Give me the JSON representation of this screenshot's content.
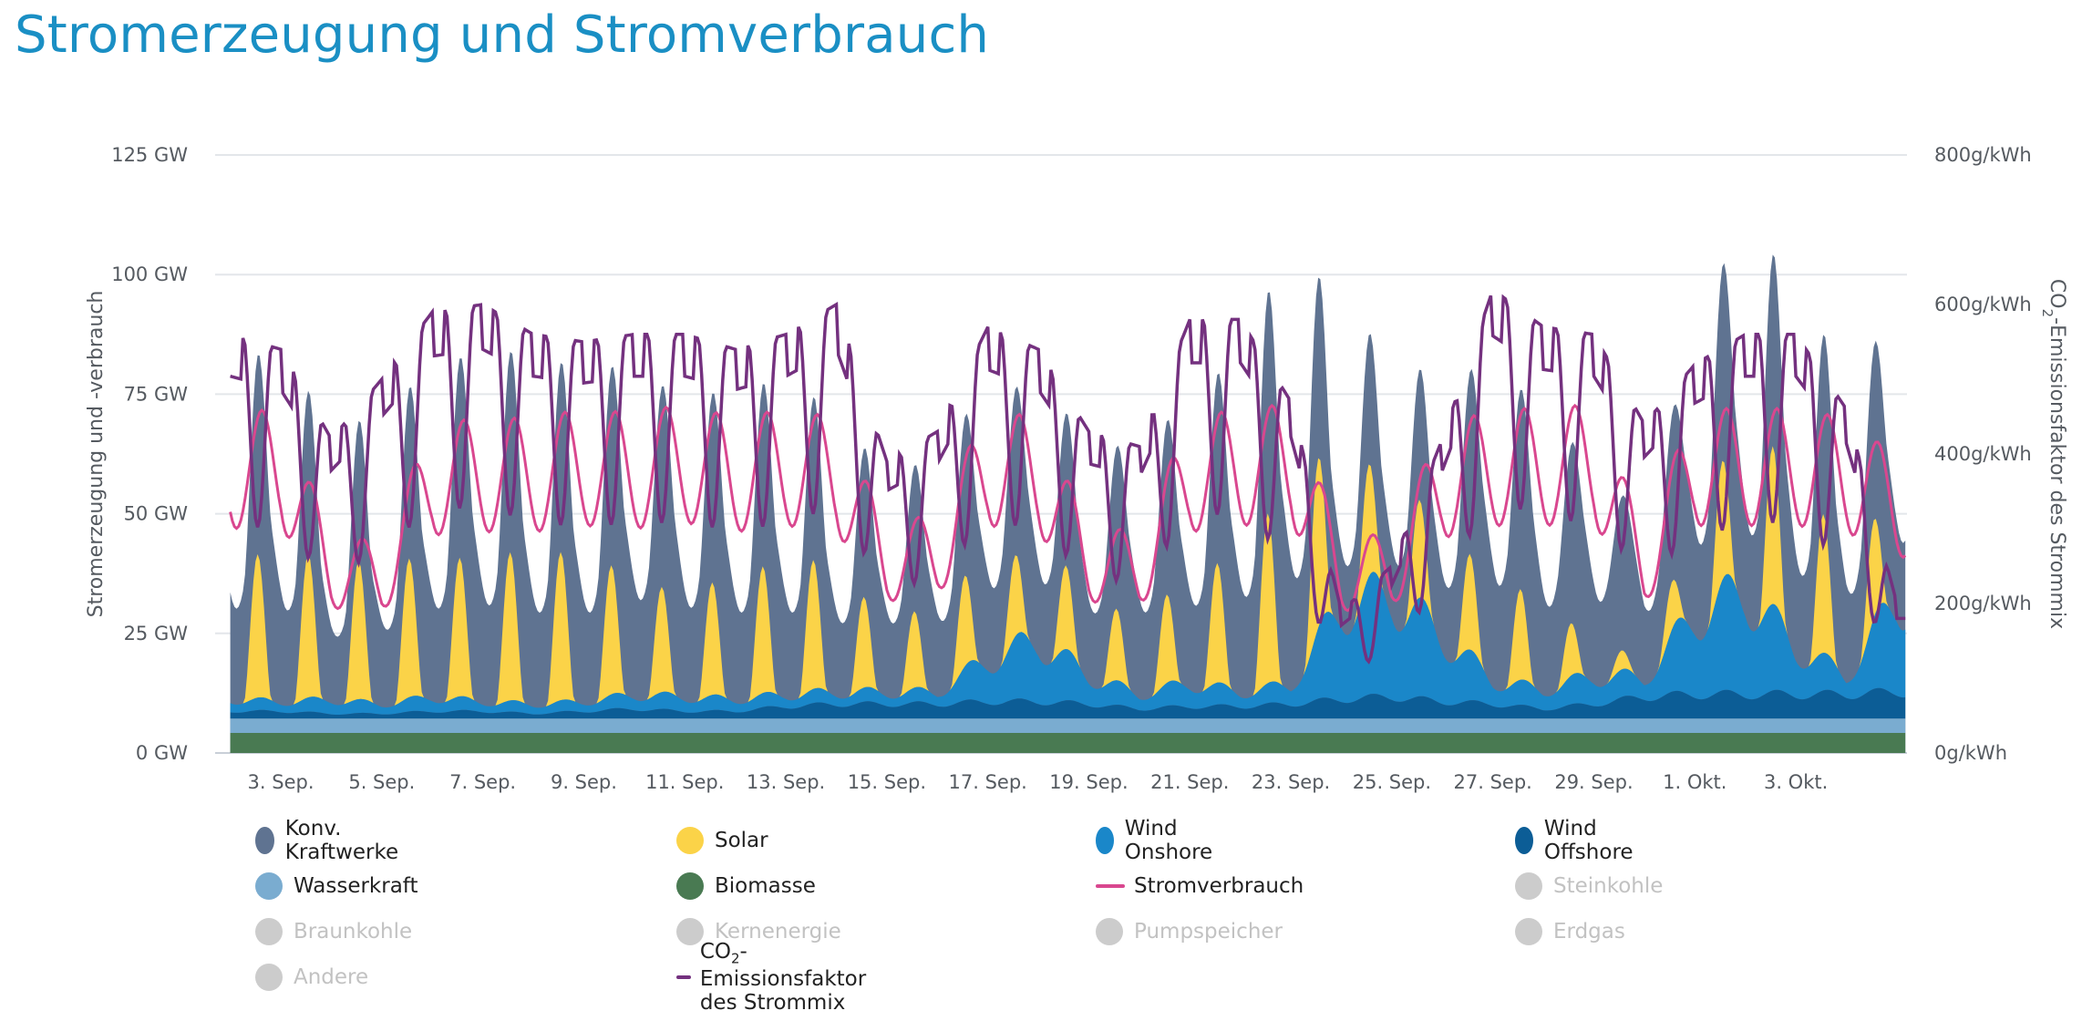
{
  "page": {
    "title": "Stromerzeugung und Stromverbrauch"
  },
  "chart_data": {
    "type": "area",
    "title": "Stromerzeugung und Stromverbrauch",
    "ylabel": "Stromerzeugung und -verbrauch",
    "y2label_parts": {
      "pre": "CO",
      "sub": "2",
      "post": "-Emissionsfaktor des Strommix"
    },
    "ylim": [
      0,
      125
    ],
    "y2lim": [
      0,
      800
    ],
    "yticks": [
      "0 GW",
      "25 GW",
      "50 GW",
      "75 GW",
      "100 GW",
      "125 GW"
    ],
    "y2ticks": [
      "0g/kWh",
      "200g/kWh",
      "400g/kWh",
      "600g/kWh",
      "800g/kWh"
    ],
    "xrange": [
      1.7,
      35.2
    ],
    "xticks": [
      {
        "day": 3,
        "label": "3. Sep."
      },
      {
        "day": 5,
        "label": "5. Sep."
      },
      {
        "day": 7,
        "label": "7. Sep."
      },
      {
        "day": 9,
        "label": "9. Sep."
      },
      {
        "day": 11,
        "label": "11. Sep."
      },
      {
        "day": 13,
        "label": "13. Sep."
      },
      {
        "day": 15,
        "label": "15. Sep."
      },
      {
        "day": 17,
        "label": "17. Sep."
      },
      {
        "day": 19,
        "label": "19. Sep."
      },
      {
        "day": 21,
        "label": "21. Sep."
      },
      {
        "day": 23,
        "label": "23. Sep."
      },
      {
        "day": 25,
        "label": "25. Sep."
      },
      {
        "day": 27,
        "label": "27. Sep."
      },
      {
        "day": 29,
        "label": "29. Sep."
      },
      {
        "day": 31,
        "label": "1. Okt."
      },
      {
        "day": 33,
        "label": "3. Okt."
      }
    ],
    "grid": true,
    "legend_position": "bottom",
    "series_meta": [
      {
        "name": "Konv. Kraftwerke",
        "color": "#5f7391",
        "active": true,
        "kind": "area"
      },
      {
        "name": "Solar",
        "color": "#fbd348",
        "active": true,
        "kind": "area"
      },
      {
        "name": "Wind Onshore",
        "color": "#1a87c9",
        "active": true,
        "kind": "area"
      },
      {
        "name": "Wind Offshore",
        "color": "#0c5d96",
        "active": true,
        "kind": "area"
      },
      {
        "name": "Wasserkraft",
        "color": "#7aacd0",
        "active": true,
        "kind": "area"
      },
      {
        "name": "Biomasse",
        "color": "#497a52",
        "active": true,
        "kind": "area"
      },
      {
        "name": "Stromverbrauch",
        "color": "#d9478f",
        "active": true,
        "kind": "line"
      },
      {
        "name": "Steinkohle",
        "color": "#cccccc",
        "active": false,
        "kind": "area"
      },
      {
        "name": "Braunkohle",
        "color": "#cccccc",
        "active": false,
        "kind": "area"
      },
      {
        "name": "Kernenergie",
        "color": "#cccccc",
        "active": false,
        "kind": "area"
      },
      {
        "name": "Pumpspeicher",
        "color": "#cccccc",
        "active": false,
        "kind": "area"
      },
      {
        "name": "Erdgas",
        "color": "#cccccc",
        "active": false,
        "kind": "area"
      },
      {
        "name": "Andere",
        "color": "#cccccc",
        "active": false,
        "kind": "area"
      },
      {
        "name": "CO2-Emissionsfaktor des Strommix",
        "label_parts": {
          "pre": "CO",
          "sub": "2",
          "post": "-Emissionsfaktor des Strommix"
        },
        "color": "#74317f",
        "active": true,
        "kind": "line"
      }
    ],
    "series": [
      {
        "name": "Biomasse",
        "values": [
          4.2,
          4.2,
          4.2,
          4.2,
          4.2,
          4.2,
          4.2,
          4.2,
          4.2,
          4.2,
          4.2,
          4.2,
          4.2,
          4.2,
          4.2,
          4.2,
          4.2,
          4.2,
          4.2,
          4.2,
          4.2,
          4.2,
          4.2,
          4.2,
          4.2,
          4.2,
          4.2,
          4.2,
          4.2,
          4.2,
          4.2,
          4.2,
          4.2,
          4.2
        ]
      },
      {
        "name": "Wasserkraft",
        "values": [
          3,
          3,
          3,
          3,
          3,
          3,
          3,
          3,
          3,
          3,
          3,
          3,
          3,
          3,
          3,
          3,
          3,
          3,
          3,
          3,
          3,
          3,
          3,
          3,
          3,
          3,
          3,
          3,
          3,
          3,
          3,
          3,
          3,
          3
        ]
      },
      {
        "name": "Wind Offshore",
        "values": [
          1.5,
          1.5,
          1,
          1,
          1.5,
          1.5,
          1,
          1.5,
          2,
          1.5,
          1.5,
          2.5,
          3,
          3,
          3,
          3.5,
          3.5,
          3,
          2,
          2.5,
          2.5,
          3,
          4,
          4.5,
          3.5,
          3,
          2,
          3,
          4.5,
          5,
          5,
          5,
          5,
          5.5
        ]
      },
      {
        "name": "Wind Onshore",
        "values": [
          2.5,
          2,
          3,
          2,
          3,
          2,
          2,
          2,
          3,
          3,
          2.5,
          2.5,
          2.5,
          2.5,
          2.5,
          9,
          13,
          6,
          3,
          5,
          3,
          4,
          20,
          22,
          14,
          5,
          4,
          6,
          4,
          17,
          22,
          10,
          4,
          20
        ]
      },
      {
        "name": "Solar",
        "values": [
          28,
          32,
          28,
          30,
          28,
          30,
          32,
          30,
          24,
          20,
          27,
          26,
          28,
          10,
          22,
          16,
          18,
          17,
          13,
          24,
          26,
          45,
          26,
          21,
          20,
          20,
          18,
          4,
          4,
          16,
          34,
          32,
          26,
          15
        ]
      },
      {
        "name": "Konv. Kraftwerke",
        "values": [
          38,
          40,
          24,
          28,
          37,
          41,
          38,
          36,
          41,
          38,
          36,
          35,
          28,
          28,
          27,
          33,
          31,
          27,
          34,
          33,
          40,
          47,
          25,
          23,
          25,
          44,
          35,
          34,
          25,
          38,
          38,
          37,
          33,
          34
        ]
      },
      {
        "name": "Stromverbrauch",
        "values": [
          71,
          72,
          46,
          44,
          69,
          70,
          70,
          72,
          71,
          73,
          70,
          72,
          70,
          48,
          50,
          72,
          70,
          48,
          46,
          70,
          72,
          73,
          45,
          46,
          68,
          72,
          72,
          73,
          47,
          72,
          72,
          72,
          70,
          62
        ]
      },
      {
        "name": "CO2-Emissionsfaktor des Strommix",
        "values": [
          560,
          540,
          420,
          500,
          590,
          600,
          560,
          550,
          560,
          560,
          540,
          560,
          600,
          390,
          430,
          570,
          540,
          430,
          410,
          580,
          580,
          470,
          190,
          250,
          420,
          620,
          570,
          560,
          440,
          520,
          560,
          560,
          460,
          200
        ]
      }
    ]
  },
  "legend": {
    "items": [
      {
        "label": "Konv. Kraftwerke"
      },
      {
        "label": "Solar"
      },
      {
        "label": "Wind Onshore"
      },
      {
        "label": "Wind Offshore"
      },
      {
        "label": "Wasserkraft"
      },
      {
        "label": "Biomasse"
      },
      {
        "label": "Stromverbrauch"
      },
      {
        "label": "Steinkohle"
      },
      {
        "label": "Braunkohle"
      },
      {
        "label": "Kernenergie"
      },
      {
        "label": "Pumpspeicher"
      },
      {
        "label": "Erdgas"
      },
      {
        "label": "Andere"
      },
      {
        "label_parts": {
          "pre": "CO",
          "sub": "2",
          "post": "-Emissionsfaktor des Strommix"
        }
      }
    ]
  }
}
